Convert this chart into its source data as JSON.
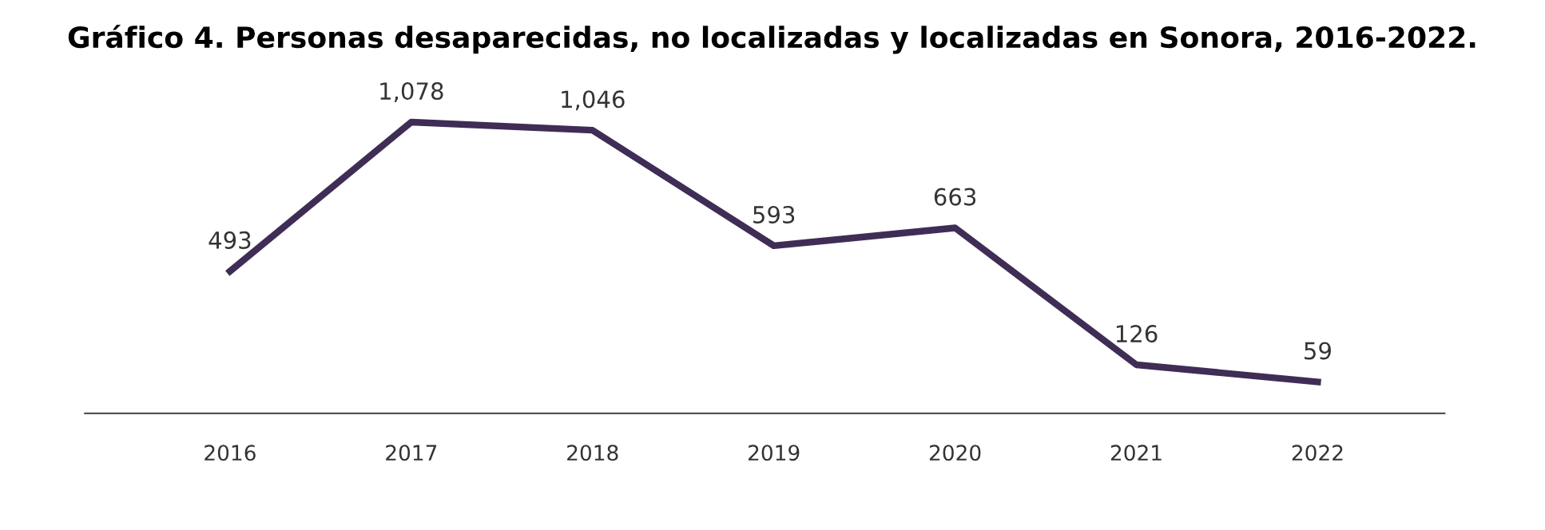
{
  "chart_data": {
    "type": "line",
    "title": "Gráfico 4. Personas desaparecidas, no localizadas y localizadas en Sonora, 2016-2022.",
    "categories": [
      "2016",
      "2017",
      "2018",
      "2019",
      "2020",
      "2021",
      "2022"
    ],
    "series": [
      {
        "color": "#3f2d56",
        "values": [
          493,
          1078,
          1046,
          593,
          663,
          126,
          59
        ],
        "value_labels": [
          "493",
          "1,078",
          "1,046",
          "593",
          "663",
          "126",
          "59"
        ]
      }
    ],
    "grid": false,
    "marker": "none",
    "line_style": "solid",
    "tick_labels": "x"
  }
}
